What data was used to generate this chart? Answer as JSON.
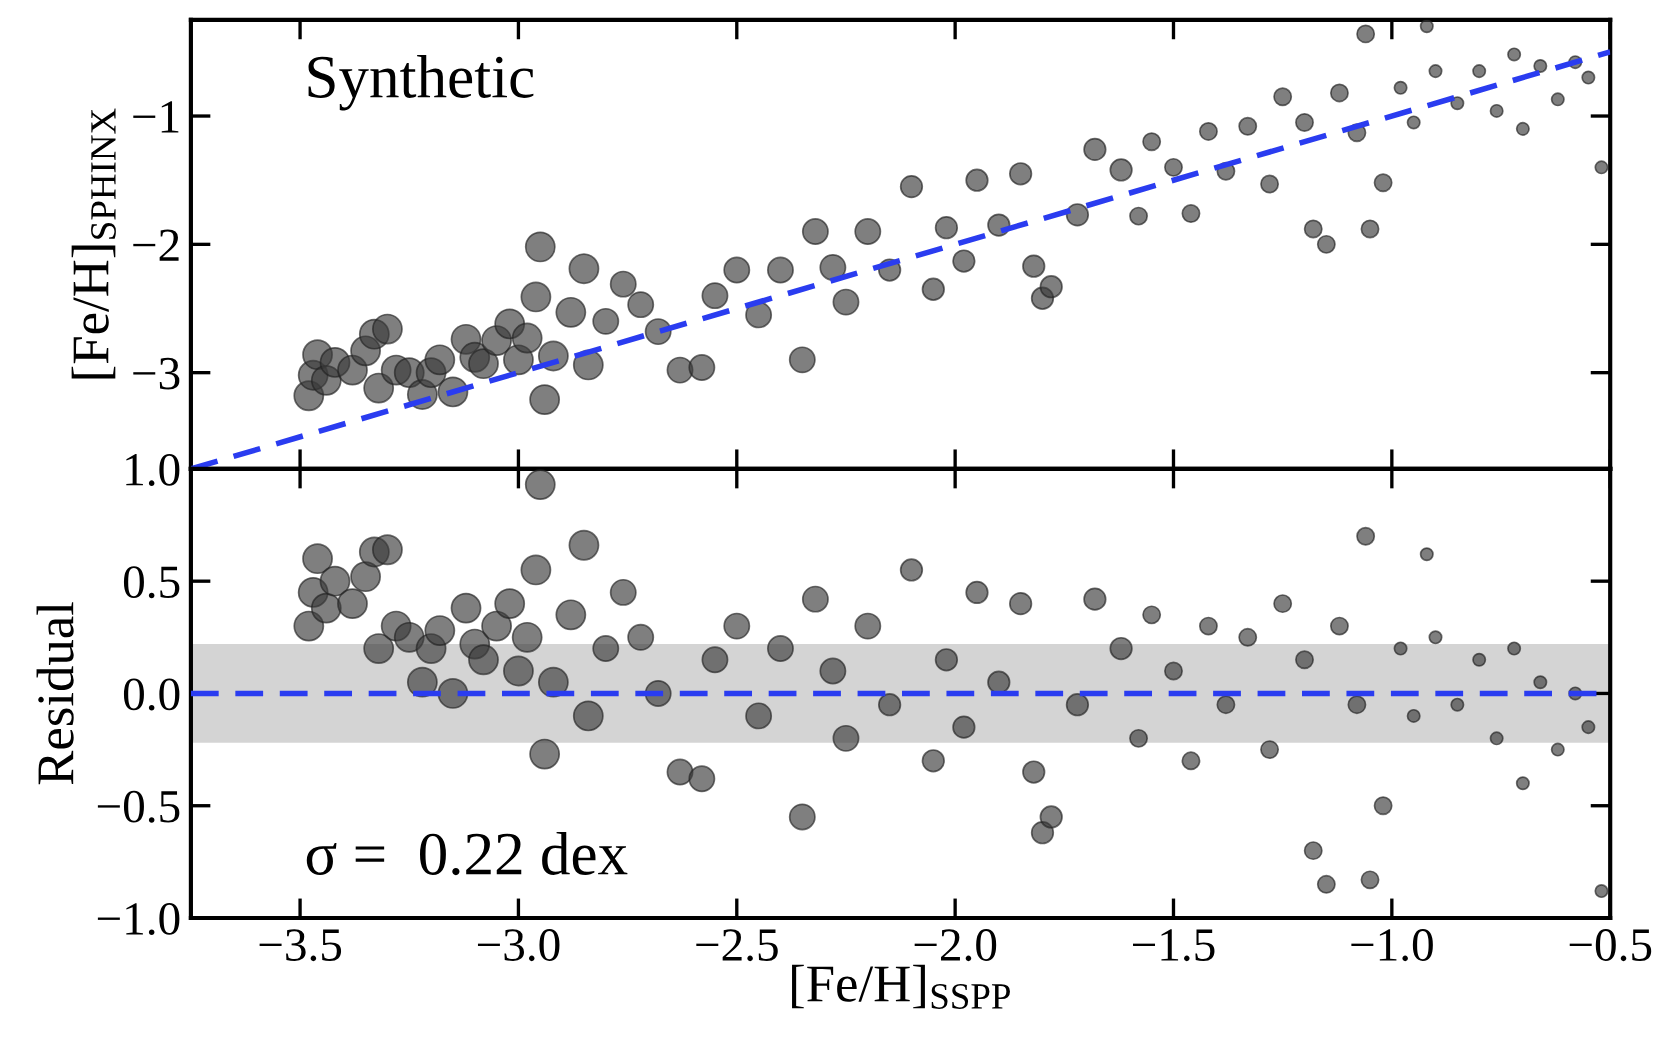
{
  "chart_data": [
    {
      "type": "bubble",
      "ylabel": "[Fe/H]$_{SPHINX}$",
      "annotations": [
        "Synthetic"
      ],
      "marker": "circle",
      "tick_labels": "y",
      "grid": false,
      "legend": false,
      "xlim": [
        -3.75,
        -0.5
      ],
      "ylim": [
        -3.75,
        -0.25
      ],
      "xticks": [
        {
          "value": -3.5,
          "label": null
        },
        {
          "value": -3.0,
          "label": null
        },
        {
          "value": -2.5,
          "label": null
        },
        {
          "value": -2.0,
          "label": null
        },
        {
          "value": -1.5,
          "label": null
        },
        {
          "value": -1.0,
          "label": null
        },
        {
          "value": -0.5,
          "label": null
        }
      ],
      "yticks": [
        {
          "value": -3,
          "label": "−3"
        },
        {
          "value": -2,
          "label": "−2"
        },
        {
          "value": -1,
          "label": "−1"
        }
      ],
      "series": [
        {
          "color": "#3a3a3a",
          "x": [
            -3.48,
            -3.47,
            -3.46,
            -3.44,
            -3.42,
            -3.38,
            -3.35,
            -3.33,
            -3.3,
            -3.32,
            -3.28,
            -3.25,
            -3.22,
            -3.2,
            -3.18,
            -3.15,
            -3.12,
            -3.1,
            -3.08,
            -3.05,
            -3.02,
            -3.0,
            -2.98,
            -2.95,
            -2.96,
            -2.94,
            -2.92,
            -2.88,
            -2.85,
            -2.84,
            -2.8,
            -2.76,
            -2.72,
            -2.68,
            -2.63,
            -2.58,
            -2.55,
            -2.5,
            -2.45,
            -2.4,
            -2.35,
            -2.32,
            -2.28,
            -2.25,
            -2.2,
            -2.15,
            -2.1,
            -2.05,
            -2.02,
            -1.98,
            -1.95,
            -1.9,
            -1.85,
            -1.82,
            -1.8,
            -1.78,
            -1.72,
            -1.68,
            -1.62,
            -1.58,
            -1.55,
            -1.5,
            -1.46,
            -1.42,
            -1.38,
            -1.33,
            -1.28,
            -1.25,
            -1.2,
            -1.18,
            -1.15,
            -1.12,
            -1.08,
            -1.06,
            -1.05,
            -1.02,
            -0.98,
            -0.95,
            -0.92,
            -0.9,
            -0.85,
            -0.8,
            -0.76,
            -0.72,
            -0.7,
            -0.66,
            -0.62,
            -0.58,
            -0.55,
            -0.52
          ],
          "values": [
            -3.18,
            -3.02,
            -2.86,
            -3.06,
            -2.92,
            -2.98,
            -2.83,
            -2.7,
            -2.66,
            -3.12,
            -2.98,
            -3.0,
            -3.17,
            -3.0,
            -2.9,
            -3.15,
            -2.74,
            -2.88,
            -2.93,
            -2.75,
            -2.62,
            -2.9,
            -2.73,
            -2.02,
            -2.41,
            -3.21,
            -2.87,
            -2.53,
            -2.19,
            -2.94,
            -2.6,
            -2.31,
            -2.47,
            -2.68,
            -2.98,
            -2.96,
            -2.4,
            -2.2,
            -2.55,
            -2.2,
            -2.9,
            -1.9,
            -2.18,
            -2.45,
            -1.9,
            -2.2,
            -1.55,
            -2.35,
            -1.87,
            -2.13,
            -1.5,
            -1.85,
            -1.45,
            -2.17,
            -2.42,
            -2.33,
            -1.77,
            -1.26,
            -1.42,
            -1.78,
            -1.2,
            -1.4,
            -1.76,
            -1.12,
            -1.43,
            -1.08,
            -1.53,
            -0.85,
            -1.05,
            -1.88,
            -2.0,
            -0.82,
            -1.13,
            -0.36,
            -1.88,
            -1.52,
            -0.78,
            -1.05,
            -0.3,
            -0.65,
            -0.9,
            -0.65,
            -0.96,
            -0.52,
            -1.1,
            -0.61,
            -0.87,
            -0.58,
            -0.7,
            -1.4
          ],
          "sizes": [
            1,
            1,
            1,
            1,
            1,
            1,
            1,
            1,
            1,
            1,
            1,
            1,
            1,
            1,
            1,
            1,
            1,
            1,
            1,
            1,
            1,
            1,
            1,
            1,
            1,
            1,
            1,
            1,
            1,
            1,
            0.75,
            0.75,
            0.75,
            0.75,
            0.75,
            0.75,
            0.75,
            0.75,
            0.75,
            0.75,
            0.75,
            0.75,
            0.75,
            0.75,
            0.75,
            0.55,
            0.55,
            0.55,
            0.55,
            0.55,
            0.55,
            0.55,
            0.55,
            0.55,
            0.55,
            0.55,
            0.55,
            0.55,
            0.55,
            0.35,
            0.35,
            0.35,
            0.35,
            0.35,
            0.35,
            0.35,
            0.35,
            0.35,
            0.35,
            0.35,
            0.35,
            0.35,
            0.35,
            0.35,
            0.35,
            0.35,
            0.18,
            0.18,
            0.18,
            0.18,
            0.18,
            0.18,
            0.18,
            0.18,
            0.18,
            0.18,
            0.18,
            0.18,
            0.18,
            0.18
          ]
        },
        {
          "type": "line",
          "marker": "none",
          "color": "#2a3cf0",
          "line_style": "dashed",
          "x": [
            -3.75,
            -0.5
          ],
          "values": [
            -3.75,
            -0.5
          ]
        }
      ]
    },
    {
      "type": "bubble",
      "xlabel": "[Fe/H]$_{SSPP}$",
      "ylabel": "Residual",
      "annotations": [
        "σ =  0.22 dex"
      ],
      "marker": "circle",
      "grid": false,
      "legend": false,
      "xlim": [
        -3.75,
        -0.5
      ],
      "ylim": [
        -1.0,
        1.0
      ],
      "xticks": [
        {
          "value": -3.5,
          "label": "−3.5"
        },
        {
          "value": -3.0,
          "label": "−3.0"
        },
        {
          "value": -2.5,
          "label": "−2.5"
        },
        {
          "value": -2.0,
          "label": "−2.0"
        },
        {
          "value": -1.5,
          "label": "−1.5"
        },
        {
          "value": -1.0,
          "label": "−1.0"
        },
        {
          "value": -0.5,
          "label": "−0.5"
        }
      ],
      "yticks": [
        {
          "value": -1.0,
          "label": "−1.0"
        },
        {
          "value": -0.5,
          "label": "−0.5"
        },
        {
          "value": 0.0,
          "label": "0.0"
        },
        {
          "value": 0.5,
          "label": "0.5"
        },
        {
          "value": 1.0,
          "label": "1.0"
        }
      ],
      "ref_lines": [
        {
          "axis": "y",
          "value": 0,
          "color": "#2a3cf0",
          "line_style": "dashed"
        }
      ],
      "bands": [
        {
          "axis": "y",
          "from": -0.22,
          "to": 0.22,
          "color": "#d4d4d4"
        }
      ],
      "series": [
        {
          "color": "#3a3a3a",
          "x": [
            -3.48,
            -3.47,
            -3.46,
            -3.44,
            -3.42,
            -3.38,
            -3.35,
            -3.33,
            -3.3,
            -3.32,
            -3.28,
            -3.25,
            -3.22,
            -3.2,
            -3.18,
            -3.15,
            -3.12,
            -3.1,
            -3.08,
            -3.05,
            -3.02,
            -3.0,
            -2.98,
            -2.95,
            -2.96,
            -2.94,
            -2.92,
            -2.88,
            -2.85,
            -2.84,
            -2.8,
            -2.76,
            -2.72,
            -2.68,
            -2.63,
            -2.58,
            -2.55,
            -2.5,
            -2.45,
            -2.4,
            -2.35,
            -2.32,
            -2.28,
            -2.25,
            -2.2,
            -2.15,
            -2.1,
            -2.05,
            -2.02,
            -1.98,
            -1.95,
            -1.9,
            -1.85,
            -1.82,
            -1.8,
            -1.78,
            -1.72,
            -1.68,
            -1.62,
            -1.58,
            -1.55,
            -1.5,
            -1.46,
            -1.42,
            -1.38,
            -1.33,
            -1.28,
            -1.25,
            -1.2,
            -1.18,
            -1.15,
            -1.12,
            -1.08,
            -1.06,
            -1.05,
            -1.02,
            -0.98,
            -0.95,
            -0.92,
            -0.9,
            -0.85,
            -0.8,
            -0.76,
            -0.72,
            -0.7,
            -0.66,
            -0.62,
            -0.58,
            -0.55,
            -0.52
          ],
          "values": [
            0.3,
            0.45,
            0.6,
            0.38,
            0.5,
            0.4,
            0.52,
            0.63,
            0.64,
            0.2,
            0.3,
            0.25,
            0.05,
            0.2,
            0.28,
            0.0,
            0.38,
            0.22,
            0.15,
            0.3,
            0.4,
            0.1,
            0.25,
            0.93,
            0.55,
            -0.27,
            0.05,
            0.35,
            0.66,
            -0.1,
            0.2,
            0.45,
            0.25,
            0.0,
            -0.35,
            -0.38,
            0.15,
            0.3,
            -0.1,
            0.2,
            -0.55,
            0.42,
            0.1,
            -0.2,
            0.3,
            -0.05,
            0.55,
            -0.3,
            0.15,
            -0.15,
            0.45,
            0.05,
            0.4,
            -0.35,
            -0.62,
            -0.55,
            -0.05,
            0.42,
            0.2,
            -0.2,
            0.35,
            0.1,
            -0.3,
            0.3,
            -0.05,
            0.25,
            -0.25,
            0.4,
            0.15,
            -0.7,
            -0.85,
            0.3,
            -0.05,
            0.7,
            -0.83,
            -0.5,
            0.2,
            -0.1,
            0.62,
            0.25,
            -0.05,
            0.15,
            -0.2,
            0.2,
            -0.4,
            0.05,
            -0.25,
            0.0,
            -0.15,
            -0.88
          ],
          "sizes": [
            1,
            1,
            1,
            1,
            1,
            1,
            1,
            1,
            1,
            1,
            1,
            1,
            1,
            1,
            1,
            1,
            1,
            1,
            1,
            1,
            1,
            1,
            1,
            1,
            1,
            1,
            1,
            1,
            1,
            1,
            0.75,
            0.75,
            0.75,
            0.75,
            0.75,
            0.75,
            0.75,
            0.75,
            0.75,
            0.75,
            0.75,
            0.75,
            0.75,
            0.75,
            0.75,
            0.55,
            0.55,
            0.55,
            0.55,
            0.55,
            0.55,
            0.55,
            0.55,
            0.55,
            0.55,
            0.55,
            0.55,
            0.55,
            0.55,
            0.35,
            0.35,
            0.35,
            0.35,
            0.35,
            0.35,
            0.35,
            0.35,
            0.35,
            0.35,
            0.35,
            0.35,
            0.35,
            0.35,
            0.35,
            0.35,
            0.35,
            0.18,
            0.18,
            0.18,
            0.18,
            0.18,
            0.18,
            0.18,
            0.18,
            0.18,
            0.18,
            0.18,
            0.18,
            0.18,
            0.18
          ]
        }
      ]
    }
  ]
}
